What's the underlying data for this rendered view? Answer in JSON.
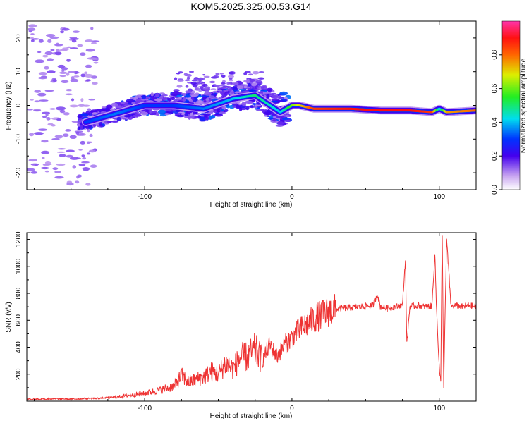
{
  "title": "KOM5.2025.325.00.53.G14",
  "chart_data": [
    {
      "type": "heatmap",
      "title": "KOM5.2025.325.00.53.G14",
      "xlabel": "Height of straight line (km)",
      "ylabel": "Frequency (Hz)",
      "xlim": [
        -180,
        125
      ],
      "ylim": [
        -25,
        25
      ],
      "xticks": [
        -100,
        0,
        100
      ],
      "xtick_labels": [
        "-100",
        "0",
        "100"
      ],
      "yticks": [
        -20,
        -10,
        0,
        10,
        20
      ],
      "ytick_labels": [
        "-20",
        "-10",
        "0",
        "10",
        "20"
      ],
      "colorbar": {
        "label": "Normalized spectral amplitude",
        "range": [
          0,
          1
        ],
        "ticks": [
          0.0,
          0.2,
          0.4,
          0.6,
          0.8
        ],
        "tick_labels": [
          "0.0",
          "0.2",
          "0.4",
          "0.6",
          "0.8"
        ]
      },
      "ridge": {
        "x": [
          -140,
          -120,
          -100,
          -80,
          -60,
          -40,
          -25,
          -15,
          -8,
          0,
          5,
          15,
          40,
          60,
          80,
          95,
          100,
          105,
          125
        ],
        "frequency": [
          -5,
          -2.5,
          0,
          0,
          -1,
          2,
          3,
          0,
          -2,
          0,
          0,
          -1,
          -1,
          -1.5,
          -1.5,
          -2,
          -1,
          -2,
          -1.5
        ],
        "amplitude": [
          0.3,
          0.35,
          0.3,
          0.3,
          0.35,
          0.4,
          0.5,
          0.45,
          0.4,
          0.6,
          0.7,
          0.85,
          0.9,
          0.9,
          0.9,
          0.85,
          0.4,
          0.75,
          0.8
        ]
      }
    },
    {
      "type": "line",
      "xlabel": "Height of straight line (km)",
      "ylabel": "SNR (v/v)",
      "xlim": [
        -180,
        125
      ],
      "ylim": [
        0,
        1250
      ],
      "xticks": [
        -100,
        0,
        100
      ],
      "xtick_labels": [
        "-100",
        "0",
        "100"
      ],
      "yticks": [
        200,
        400,
        600,
        800,
        1000,
        1200
      ],
      "ytick_labels": [
        "200",
        "400",
        "600",
        "800",
        "1000",
        "1200"
      ],
      "series": [
        {
          "name": "SNR",
          "color": "#ee3333",
          "x": [
            -180,
            -170,
            -160,
            -150,
            -140,
            -130,
            -120,
            -110,
            -100,
            -90,
            -80,
            -75,
            -70,
            -65,
            -60,
            -55,
            -50,
            -45,
            -40,
            -35,
            -30,
            -25,
            -20,
            -15,
            -10,
            -5,
            0,
            5,
            10,
            15,
            20,
            25,
            30,
            35,
            40,
            45,
            50,
            55,
            58,
            60,
            65,
            70,
            75,
            77,
            78,
            80,
            85,
            90,
            95,
            97,
            98,
            100,
            101,
            102,
            103,
            105,
            108,
            110,
            115,
            120,
            125
          ],
          "y": [
            15,
            15,
            18,
            15,
            20,
            22,
            30,
            45,
            60,
            80,
            110,
            190,
            140,
            160,
            180,
            220,
            200,
            280,
            240,
            320,
            330,
            380,
            300,
            420,
            330,
            420,
            470,
            530,
            570,
            610,
            640,
            665,
            680,
            690,
            695,
            700,
            705,
            710,
            800,
            700,
            690,
            700,
            710,
            1050,
            420,
            700,
            710,
            700,
            705,
            1100,
            720,
            250,
            140,
            1250,
            120,
            1200,
            700,
            710,
            700,
            710,
            700
          ]
        }
      ]
    }
  ]
}
